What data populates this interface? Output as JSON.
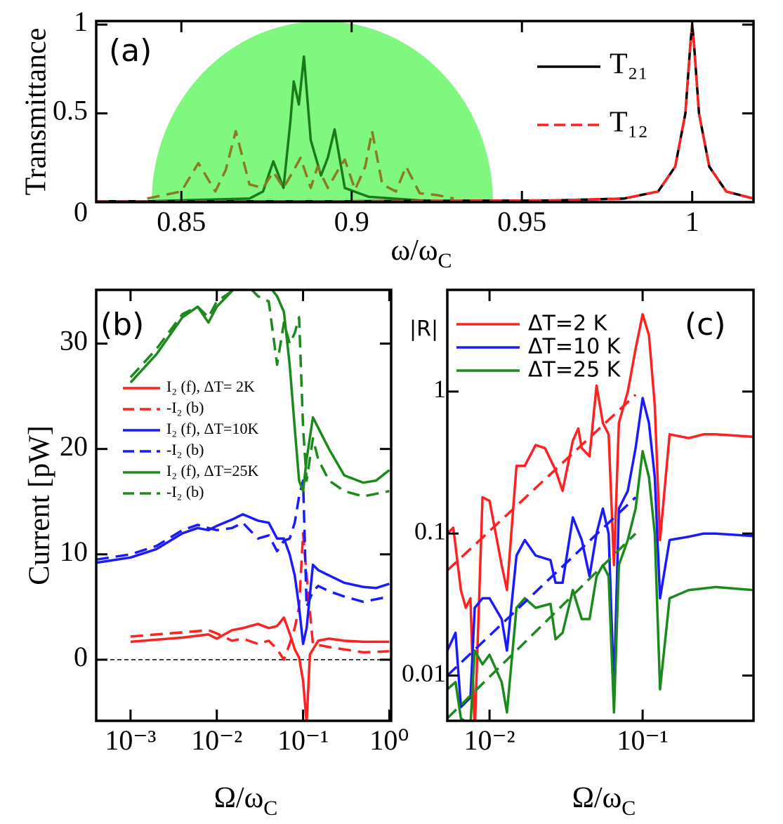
{
  "chart_data": [
    {
      "type": "line",
      "x_label": {
        "text": "ω/ω",
        "sub": "C"
      },
      "y_label": "Transmittance",
      "annotations": [
        "(a)"
      ],
      "xlim": [
        0.825,
        1.018
      ],
      "ylim": [
        0,
        1.02
      ],
      "xticks": [
        0.85,
        0.9,
        0.95,
        1
      ],
      "yticks": [
        0,
        0.5,
        1
      ],
      "series": [
        {
          "color": "#1a7a1a",
          "dash": false,
          "x": [
            0.84,
            0.87,
            0.874,
            0.877,
            0.88,
            0.882,
            0.883,
            0.8845,
            0.886,
            0.888,
            0.891,
            0.893,
            0.895,
            0.898,
            0.905,
            0.92,
            0.93
          ],
          "values": [
            0.005,
            0.02,
            0.06,
            0.23,
            0.08,
            0.45,
            0.68,
            0.55,
            0.82,
            0.35,
            0.15,
            0.25,
            0.41,
            0.08,
            0.03,
            0.01,
            0.005
          ]
        },
        {
          "color": "#8a7a20",
          "dash": true,
          "x": [
            0.84,
            0.85,
            0.855,
            0.86,
            0.863,
            0.866,
            0.87,
            0.874,
            0.877,
            0.88,
            0.883,
            0.885,
            0.888,
            0.89,
            0.893,
            0.896,
            0.898,
            0.901,
            0.904,
            0.906,
            0.909,
            0.913,
            0.916,
            0.92,
            0.925,
            0.93
          ],
          "values": [
            0.02,
            0.06,
            0.22,
            0.06,
            0.18,
            0.4,
            0.1,
            0.08,
            0.17,
            0.08,
            0.18,
            0.25,
            0.08,
            0.2,
            0.08,
            0.18,
            0.24,
            0.07,
            0.2,
            0.4,
            0.1,
            0.06,
            0.2,
            0.05,
            0.04,
            0.02
          ]
        },
        {
          "name": "T₂₁",
          "color": "#000000",
          "dash": false,
          "x": [
            0.825,
            0.9,
            0.96,
            0.98,
            0.99,
            0.995,
            0.998,
            0.9995,
            1.0,
            1.0005,
            1.002,
            1.005,
            1.01,
            1.018
          ],
          "values": [
            0.005,
            0.005,
            0.01,
            0.02,
            0.06,
            0.2,
            0.5,
            0.9,
            1.0,
            0.9,
            0.5,
            0.2,
            0.06,
            0.02
          ]
        },
        {
          "name": "T₁₂",
          "color": "#ff2020",
          "dash": true,
          "x": [
            0.825,
            0.9,
            0.96,
            0.98,
            0.99,
            0.995,
            0.998,
            0.9995,
            1.0,
            1.0005,
            1.002,
            1.005,
            1.01,
            1.018
          ],
          "values": [
            0.005,
            0.005,
            0.01,
            0.02,
            0.06,
            0.2,
            0.5,
            0.9,
            1.0,
            0.9,
            0.5,
            0.2,
            0.06,
            0.02
          ]
        }
      ]
    },
    {
      "type": "line",
      "x_label": {
        "text": "Ω/ω",
        "sub": "C"
      },
      "y_label": "Current [pW]",
      "annotations": [
        "(b)"
      ],
      "xscale": "log",
      "xlim": [
        0.0004,
        1.05
      ],
      "ylim": [
        -5.8,
        35.1
      ],
      "zero_line": true,
      "xticks": [
        {
          "value": 0.001,
          "label": "10⁻³"
        },
        {
          "value": 0.01,
          "label": "10⁻²"
        },
        {
          "value": 0.1,
          "label": "10⁻¹"
        },
        {
          "value": 1,
          "label": "10⁰"
        }
      ],
      "yticks": [
        0,
        10,
        20,
        30
      ],
      "series": [
        {
          "name": "I₂ (f), ΔT= 2K",
          "color": "#ff2020",
          "dash": false,
          "x": [
            0.001,
            0.004,
            0.008,
            0.01,
            0.015,
            0.02,
            0.03,
            0.04,
            0.05,
            0.06,
            0.07,
            0.08,
            0.09,
            0.1,
            0.11,
            0.12,
            0.15,
            0.2,
            0.3,
            0.5,
            1.0
          ],
          "values": [
            1.7,
            2.1,
            2.4,
            2.0,
            2.8,
            3.0,
            3.4,
            3.0,
            3.2,
            4.0,
            2.5,
            1.0,
            0.2,
            -2,
            -6,
            0.5,
            1.8,
            2.0,
            1.8,
            1.7,
            1.7
          ]
        },
        {
          "name": "-I₂ (b)",
          "color": "#ff2020",
          "dash": true,
          "x": [
            0.001,
            0.004,
            0.008,
            0.01,
            0.015,
            0.02,
            0.03,
            0.04,
            0.05,
            0.06,
            0.07,
            0.08,
            0.09,
            0.1,
            0.11,
            0.13,
            0.2,
            0.5,
            1.0
          ],
          "values": [
            2.2,
            2.6,
            2.8,
            2.5,
            1.8,
            2.0,
            1.5,
            1.8,
            1.0,
            0,
            1.5,
            3.0,
            5.0,
            12,
            8,
            1.5,
            1.2,
            0.7,
            0.8
          ]
        },
        {
          "name": "I₂ (f), ΔT=10K",
          "color": "#1a1aff",
          "dash": false,
          "x": [
            0.0004,
            0.001,
            0.002,
            0.004,
            0.006,
            0.008,
            0.01,
            0.015,
            0.02,
            0.03,
            0.04,
            0.05,
            0.06,
            0.07,
            0.08,
            0.09,
            0.1,
            0.11,
            0.13,
            0.15,
            0.2,
            0.3,
            0.5,
            0.7,
            1.0
          ],
          "values": [
            9.2,
            9.7,
            10.5,
            12,
            12.5,
            12.3,
            12.7,
            13.3,
            13.8,
            13.2,
            13.0,
            11.5,
            11.5,
            10,
            8,
            5,
            1.5,
            3,
            9,
            8.5,
            8,
            7.3,
            6.9,
            6.8,
            7.2
          ]
        },
        {
          "name": "-I₂ (b)",
          "color": "#1a1aff",
          "dash": true,
          "x": [
            0.0004,
            0.001,
            0.002,
            0.004,
            0.006,
            0.008,
            0.01,
            0.015,
            0.02,
            0.03,
            0.04,
            0.05,
            0.06,
            0.07,
            0.08,
            0.09,
            0.1,
            0.11,
            0.13,
            0.15,
            0.2,
            0.3,
            0.5,
            1.0
          ],
          "values": [
            9.5,
            10,
            10.8,
            12.3,
            12.8,
            12.5,
            12.3,
            12.5,
            13,
            11.5,
            11.8,
            10.3,
            11.3,
            11.5,
            13,
            15.5,
            17,
            5,
            6.5,
            7,
            6.5,
            6,
            5.5,
            6
          ]
        },
        {
          "name": "I₂ (f), ΔT=25K",
          "color": "#1a8a1a",
          "dash": false,
          "x": [
            0.001,
            0.002,
            0.004,
            0.006,
            0.008,
            0.01,
            0.015,
            0.02,
            0.03,
            0.04,
            0.05,
            0.06,
            0.07,
            0.08,
            0.09,
            0.1,
            0.11,
            0.13,
            0.15,
            0.2,
            0.3,
            0.5,
            0.7,
            1.0
          ],
          "values": [
            26.3,
            29,
            32.5,
            33.5,
            32,
            33.5,
            35,
            36,
            36,
            35.5,
            34.5,
            33,
            28,
            22,
            17,
            16,
            19,
            23,
            22,
            20,
            17.5,
            16.8,
            17,
            18
          ]
        },
        {
          "name": "-I₂ (b)",
          "color": "#1a8a1a",
          "dash": true,
          "x": [
            0.001,
            0.002,
            0.004,
            0.006,
            0.008,
            0.01,
            0.015,
            0.02,
            0.03,
            0.04,
            0.05,
            0.06,
            0.07,
            0.08,
            0.09,
            0.1,
            0.11,
            0.13,
            0.15,
            0.2,
            0.3,
            0.5,
            1.0
          ],
          "values": [
            26.8,
            29.5,
            32.8,
            33.5,
            32.5,
            34,
            35,
            36,
            34.5,
            34,
            28,
            32,
            30,
            31,
            32.5,
            22,
            17,
            21,
            19,
            17,
            16,
            15.5,
            16
          ]
        }
      ]
    },
    {
      "type": "line",
      "x_label": {
        "text": "Ω/ω",
        "sub": "C"
      },
      "annotations": [
        "(c)",
        "|R|"
      ],
      "xscale": "log",
      "yscale": "log",
      "xlim": [
        0.0053,
        0.53
      ],
      "ylim": [
        0.0048,
        5.2
      ],
      "xticks": [
        {
          "value": 0.01,
          "label": "10⁻²"
        },
        {
          "value": 0.1,
          "label": "10⁻¹"
        }
      ],
      "yticks": [
        0.01,
        0.1,
        1
      ],
      "series": [
        {
          "name": "ΔT=2 K",
          "color": "#ff2020",
          "dash": false,
          "x": [
            0.0053,
            0.0058,
            0.0065,
            0.007,
            0.0075,
            0.008,
            0.009,
            0.01,
            0.012,
            0.013,
            0.015,
            0.017,
            0.02,
            0.023,
            0.027,
            0.03,
            0.035,
            0.038,
            0.04,
            0.045,
            0.05,
            0.055,
            0.06,
            0.065,
            0.07,
            0.08,
            0.09,
            0.1,
            0.11,
            0.12,
            0.13,
            0.15,
            0.2,
            0.25,
            0.3,
            0.53
          ],
          "values": [
            0.1,
            0.11,
            0.04,
            0.03,
            0.035,
            0.004,
            0.18,
            0.17,
            0.06,
            0.04,
            0.3,
            0.3,
            0.42,
            0.4,
            0.28,
            0.2,
            0.45,
            0.55,
            0.4,
            0.35,
            1.1,
            0.6,
            0.5,
            0.06,
            0.6,
            1.0,
            2.0,
            3.5,
            2.5,
            0.8,
            0.09,
            0.5,
            0.47,
            0.5,
            0.5,
            0.48
          ]
        },
        {
          "name": "ΔT=10 K",
          "color": "#1a1aff",
          "dash": false,
          "x": [
            0.0053,
            0.006,
            0.0065,
            0.0075,
            0.008,
            0.009,
            0.01,
            0.012,
            0.013,
            0.015,
            0.017,
            0.02,
            0.025,
            0.027,
            0.03,
            0.035,
            0.04,
            0.045,
            0.05,
            0.055,
            0.06,
            0.065,
            0.07,
            0.08,
            0.09,
            0.1,
            0.11,
            0.12,
            0.13,
            0.15,
            0.2,
            0.25,
            0.3,
            0.53
          ],
          "values": [
            0.015,
            0.02,
            0.006,
            0.007,
            0.03,
            0.035,
            0.035,
            0.025,
            0.015,
            0.07,
            0.09,
            0.07,
            0.065,
            0.045,
            0.045,
            0.13,
            0.09,
            0.05,
            0.1,
            0.15,
            0.1,
            0.008,
            0.15,
            0.2,
            0.4,
            0.9,
            0.6,
            0.25,
            0.035,
            0.09,
            0.095,
            0.1,
            0.1,
            0.096
          ]
        },
        {
          "name": "ΔT=25 K",
          "color": "#1a8a1a",
          "dash": false,
          "x": [
            0.0053,
            0.006,
            0.0065,
            0.0075,
            0.008,
            0.009,
            0.01,
            0.012,
            0.013,
            0.015,
            0.017,
            0.02,
            0.025,
            0.027,
            0.03,
            0.035,
            0.04,
            0.045,
            0.05,
            0.055,
            0.06,
            0.065,
            0.07,
            0.08,
            0.09,
            0.1,
            0.11,
            0.12,
            0.13,
            0.15,
            0.2,
            0.3,
            0.53
          ],
          "values": [
            0.008,
            0.009,
            0.005,
            0.0045,
            0.015,
            0.012,
            0.014,
            0.009,
            0.0055,
            0.03,
            0.035,
            0.03,
            0.032,
            0.018,
            0.02,
            0.04,
            0.025,
            0.025,
            0.05,
            0.06,
            0.05,
            0.0055,
            0.06,
            0.09,
            0.15,
            0.38,
            0.25,
            0.1,
            0.008,
            0.035,
            0.04,
            0.042,
            0.04
          ]
        },
        {
          "color": "#ff2020",
          "dash": true,
          "x": [
            0.0053,
            0.09
          ],
          "values": [
            0.055,
            0.95
          ]
        },
        {
          "color": "#1a1aff",
          "dash": true,
          "x": [
            0.0053,
            0.09
          ],
          "values": [
            0.01,
            0.18
          ]
        },
        {
          "color": "#1a8a1a",
          "dash": true,
          "x": [
            0.0053,
            0.09
          ],
          "values": [
            0.005,
            0.1
          ]
        }
      ]
    }
  ]
}
